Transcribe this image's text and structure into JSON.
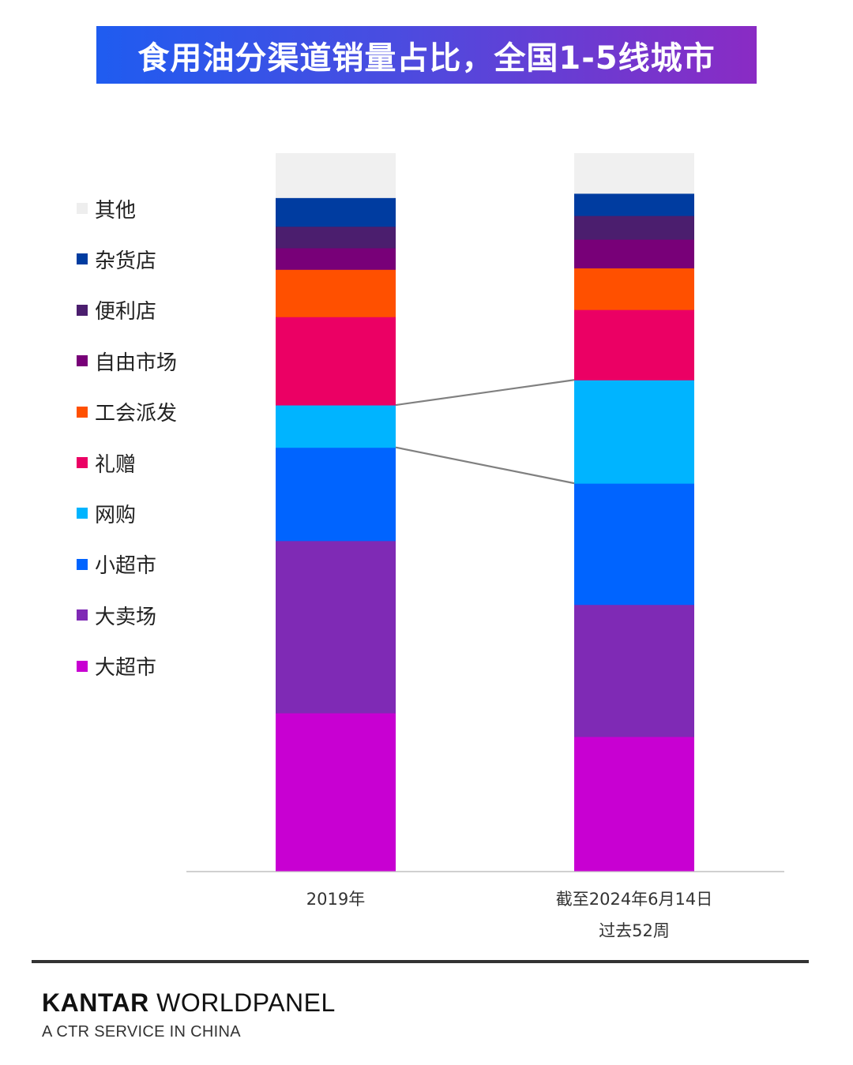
{
  "title": "食用油分渠道销量占比，全国1-5线城市",
  "brand": {
    "name_bold": "KANTAR",
    "name_rest": " WORLDPANEL",
    "subtitle": "A CTR SERVICE IN CHINA"
  },
  "chart_data": {
    "type": "bar",
    "stacked": true,
    "categories": [
      "2019年",
      "截至2024年6月14日 过去52周"
    ],
    "category_label_lines": [
      [
        "2019年"
      ],
      [
        "截至2024年6月14日",
        "过去52周"
      ]
    ],
    "ylim": [
      0,
      100
    ],
    "series": [
      {
        "name": "大超市",
        "color": "#c800d2",
        "values": [
          22.0,
          18.7
        ]
      },
      {
        "name": "大卖场",
        "color": "#7f2ab5",
        "values": [
          24.0,
          18.4
        ]
      },
      {
        "name": "小超市",
        "color": "#0064ff",
        "values": [
          13.0,
          16.9
        ]
      },
      {
        "name": "网购",
        "color": "#00b4ff",
        "values": [
          5.9,
          14.4
        ]
      },
      {
        "name": "礼赠",
        "color": "#eb0064",
        "values": [
          12.3,
          9.8
        ]
      },
      {
        "name": "工会派发",
        "color": "#ff5000",
        "values": [
          6.6,
          5.8
        ]
      },
      {
        "name": "自由市场",
        "color": "#780078",
        "values": [
          3.0,
          4.0
        ]
      },
      {
        "name": "便利店",
        "color": "#4b1e6e",
        "values": [
          3.0,
          3.3
        ]
      },
      {
        "name": "杂货店",
        "color": "#003ca0",
        "values": [
          4.0,
          3.1
        ]
      },
      {
        "name": "其他",
        "color": "#f0f0f0",
        "values": [
          6.2,
          5.6
        ]
      }
    ],
    "legend_order": [
      "其他",
      "杂货店",
      "便利店",
      "自由市场",
      "工会派发",
      "礼赠",
      "网购",
      "小超市",
      "大卖场",
      "大超市"
    ],
    "connector_series": "网购",
    "connector_color": "#808080",
    "axis_color": "#d0d0d0"
  }
}
